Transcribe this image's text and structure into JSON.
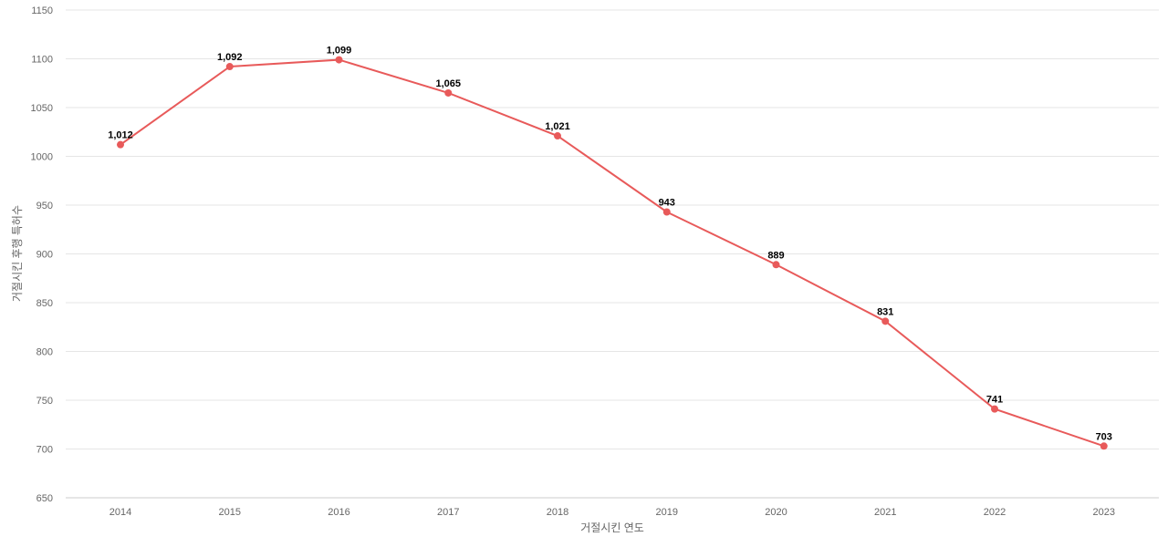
{
  "chart_data": {
    "type": "line",
    "title": "",
    "xlabel": "거절시킨 연도",
    "ylabel": "거절시킨 후행 특허수",
    "x": [
      "2014",
      "2015",
      "2016",
      "2017",
      "2018",
      "2019",
      "2020",
      "2021",
      "2022",
      "2023"
    ],
    "series": [
      {
        "values": [
          1012,
          1092,
          1099,
          1065,
          1021,
          943,
          889,
          831,
          741,
          703
        ],
        "labels": [
          "1,012",
          "1,092",
          "1,099",
          "1,065",
          "1,021",
          "943",
          "889",
          "831",
          "741",
          "703"
        ],
        "color": "#e85a5a"
      }
    ],
    "yticks": [
      "650",
      "700",
      "750",
      "800",
      "850",
      "900",
      "950",
      "1000",
      "1050",
      "1100",
      "1150"
    ],
    "ylim": [
      650,
      1150
    ],
    "grid": true,
    "legend": "none"
  }
}
